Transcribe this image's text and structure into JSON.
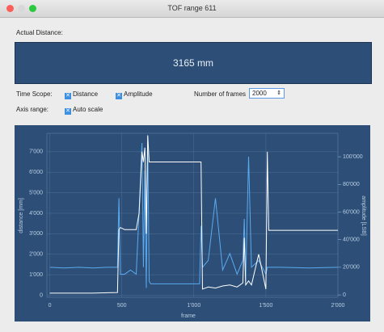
{
  "window": {
    "title": "TOF range 611"
  },
  "display": {
    "label": "Actual Distance:",
    "value": "3165 mm"
  },
  "controls": {
    "time_scope": "Time Scope:",
    "distance": "Distance",
    "amplitude": "Amplitude",
    "frames_label": "Number of frames",
    "frames": "2000",
    "axis_range": "Axis range:",
    "auto_scale": "Auto scale"
  },
  "chart_data": {
    "type": "line",
    "x_label": "frame",
    "y_label": "distance [mm]",
    "y2_label": "amplitude [LSB]",
    "x": [
      0,
      100,
      200,
      300,
      400,
      470,
      480,
      490,
      520,
      560,
      600,
      620,
      640,
      650,
      660,
      670,
      680,
      690,
      700,
      800,
      900,
      1000,
      1040,
      1050,
      1060,
      1100,
      1150,
      1200,
      1250,
      1300,
      1340,
      1350,
      1360,
      1380,
      1400,
      1450,
      1500,
      1510,
      1520,
      1600,
      1800,
      2000
    ],
    "series": [
      {
        "name": "Distance",
        "color": "#ffffff",
        "values": [
          100,
          100,
          100,
          100,
          120,
          130,
          3200,
          3300,
          3200,
          3200,
          3200,
          4000,
          7000,
          6500,
          7200,
          3000,
          7800,
          6500,
          6500,
          6500,
          6500,
          6500,
          6500,
          6500,
          300,
          400,
          350,
          450,
          500,
          400,
          600,
          2800,
          500,
          700,
          500,
          2000,
          300,
          7000,
          3165,
          3165,
          3165,
          3165
        ]
      },
      {
        "name": "Amplitude",
        "color": "#5aaaf0",
        "axis": "y2",
        "values": [
          20000,
          19500,
          20000,
          19500,
          20000,
          20000,
          70000,
          15000,
          15000,
          18000,
          15000,
          60000,
          110000,
          20000,
          90000,
          5000,
          115000,
          10000,
          8000,
          8000,
          8000,
          8000,
          8000,
          50000,
          20000,
          25000,
          70000,
          18000,
          30000,
          15000,
          25000,
          55000,
          10000,
          100000,
          20000,
          25000,
          15000,
          20000,
          20000,
          20000,
          19500,
          20000
        ]
      }
    ],
    "xlim": [
      -20,
      2000
    ],
    "xticks": [
      0,
      500,
      {
        "value": 1000,
        "label": "1'000"
      },
      {
        "value": 1500,
        "label": "1'500"
      },
      {
        "value": 2000,
        "label": "2'000"
      }
    ],
    "ylim": [
      -100,
      7900
    ],
    "yticks": [
      0,
      {
        "value": 1000,
        "label": "1'000"
      },
      {
        "value": 2000,
        "label": "2'000"
      },
      {
        "value": 3000,
        "label": "3'000"
      },
      {
        "value": 4000,
        "label": "4'000"
      },
      {
        "value": 5000,
        "label": "5'000"
      },
      {
        "value": 6000,
        "label": "6'000"
      },
      {
        "value": 7000,
        "label": "7'000"
      }
    ],
    "y2lim": [
      -1700,
      117000
    ],
    "y2ticks": [
      0,
      {
        "value": 20000,
        "label": "20'000"
      },
      {
        "value": 40000,
        "label": "40'000"
      },
      {
        "value": 60000,
        "label": "60'000"
      },
      {
        "value": 80000,
        "label": "80'000"
      },
      {
        "value": 100000,
        "label": "100'000"
      }
    ],
    "grid": true
  }
}
